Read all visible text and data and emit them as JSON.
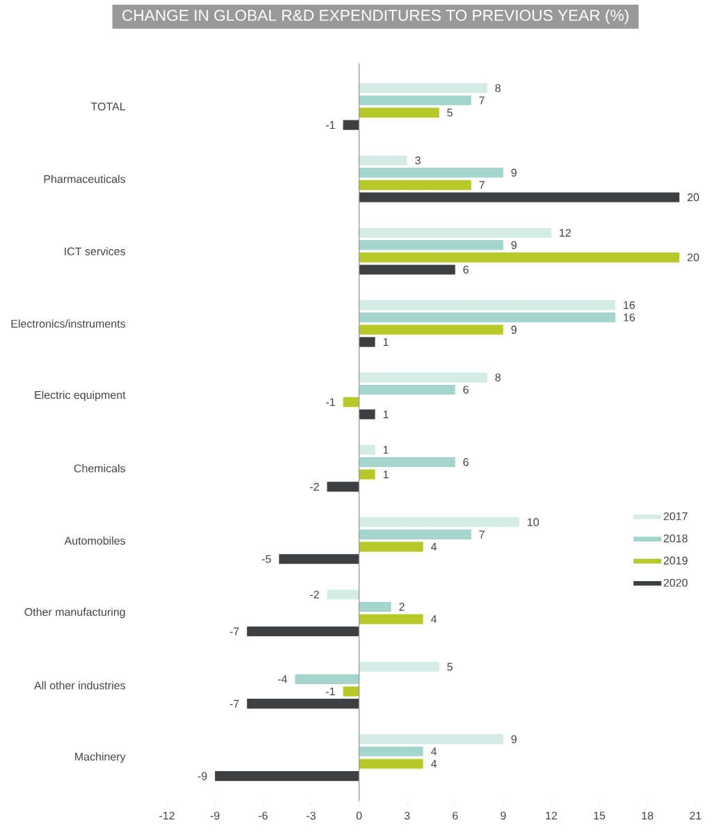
{
  "chart_data": {
    "type": "bar",
    "orientation": "horizontal",
    "title": "CHANGE IN GLOBAL R&D EXPENDITURES TO PREVIOUS YEAR (%)",
    "categories": [
      "TOTAL",
      "Pharmaceuticals",
      "ICT services",
      "Electronics/instruments",
      "Electric equipment",
      "Chemicals",
      "Automobiles",
      "Other manufacturing",
      "All other industries",
      "Machinery"
    ],
    "series": [
      {
        "name": "2017",
        "color": "#d5ebe6",
        "values": [
          8,
          3,
          12,
          16,
          8,
          1,
          10,
          -2,
          5,
          9
        ]
      },
      {
        "name": "2018",
        "color": "#a3d5cc",
        "values": [
          7,
          9,
          9,
          16,
          6,
          6,
          7,
          2,
          -4,
          4
        ]
      },
      {
        "name": "2019",
        "color": "#b5c92a",
        "values": [
          5,
          7,
          20,
          9,
          -1,
          1,
          4,
          4,
          -1,
          4
        ]
      },
      {
        "name": "2020",
        "color": "#3c4043",
        "values": [
          -1,
          20,
          6,
          1,
          1,
          -2,
          -5,
          -7,
          -7,
          -9
        ]
      }
    ],
    "xlim": [
      -12,
      21
    ],
    "xticks": [
      -12,
      -9,
      -6,
      -3,
      0,
      3,
      6,
      9,
      12,
      15,
      18,
      21
    ],
    "data_labels": true,
    "legend": "right"
  }
}
